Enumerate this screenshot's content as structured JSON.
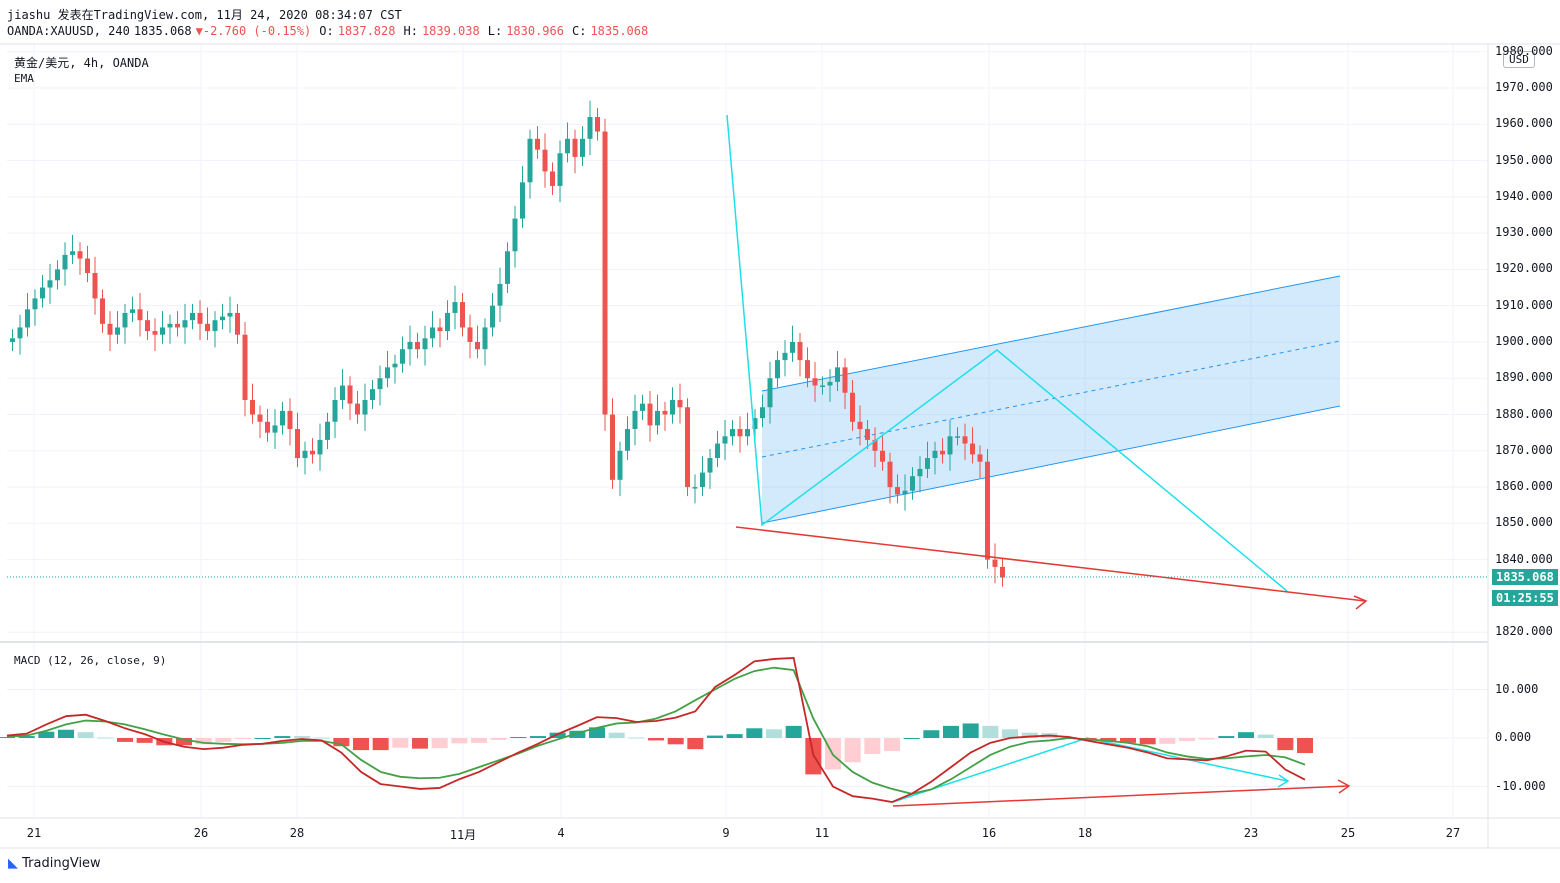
{
  "header": {
    "line1": "jiashu 发表在TradingView.com, 11月 24, 2020 08:34:07 CST",
    "symbol": "OANDA:XAUUSD, 240",
    "last": "1835.068",
    "change": "-2.760 (-0.15%)",
    "open_label": "O:",
    "open": "1837.828",
    "high_label": "H:",
    "high": "1839.038",
    "low_label": "L:",
    "low": "1830.966",
    "close_label": "C:",
    "close": "1835.068"
  },
  "legend": {
    "title": "黄金/美元, 4h, OANDA",
    "indicator": "EMA",
    "macd": "MACD (12, 26, close, 9)"
  },
  "currency": "USD",
  "price_badge": "1835.068",
  "countdown_badge": "01:25:55",
  "brand": "TradingView",
  "colors": {
    "up": "#26a69a",
    "down": "#ef5350",
    "channel": "#2196f3",
    "zigzag": "#1fe0e8",
    "trend": "#e53935",
    "macd": "#c62828",
    "signal": "#43a047"
  },
  "chart_data": [
    {
      "type": "candlestick",
      "title": "黄金/美元, 4h, OANDA",
      "ylim": [
        1818,
        1990
      ],
      "yticks": [
        "1980.000",
        "1970.000",
        "1960.000",
        "1950.000",
        "1940.000",
        "1930.000",
        "1920.000",
        "1910.000",
        "1900.000",
        "1890.000",
        "1880.000",
        "1870.000",
        "1860.000",
        "1850.000",
        "1840.000",
        "1820.000"
      ],
      "xticks": [
        "21",
        "26",
        "28",
        "11月",
        "4",
        "9",
        "11",
        "16",
        "18",
        "23",
        "25",
        "27"
      ],
      "ohlc_closes_approx": [
        1901,
        1904,
        1909,
        1912,
        1915,
        1917,
        1920,
        1924,
        1925,
        1923,
        1919,
        1912,
        1905,
        1902,
        1904,
        1908,
        1909,
        1906,
        1903,
        1902,
        1904,
        1905,
        1904,
        1906,
        1908,
        1905,
        1903,
        1906,
        1907,
        1908,
        1902,
        1884,
        1880,
        1878,
        1875,
        1877,
        1881,
        1876,
        1868,
        1870,
        1869,
        1873,
        1878,
        1884,
        1888,
        1883,
        1880,
        1884,
        1887,
        1890,
        1893,
        1894,
        1898,
        1900,
        1898,
        1901,
        1904,
        1903,
        1908,
        1911,
        1904,
        1900,
        1898,
        1904,
        1910,
        1916,
        1925,
        1934,
        1944,
        1956,
        1953,
        1947,
        1943,
        1952,
        1956,
        1951,
        1956,
        1962,
        1958,
        1880,
        1862,
        1870,
        1876,
        1881,
        1883,
        1877,
        1881,
        1880,
        1884,
        1882,
        1860,
        1860,
        1864,
        1868,
        1872,
        1874,
        1876,
        1874,
        1876,
        1879,
        1882,
        1890,
        1895,
        1897,
        1900,
        1895,
        1890,
        1888,
        1888,
        1889,
        1893,
        1886,
        1878,
        1876,
        1873,
        1870,
        1867,
        1860,
        1858,
        1859,
        1863,
        1865,
        1868,
        1870,
        1869,
        1874,
        1874,
        1872,
        1869,
        1867,
        1840,
        1838,
        1835.068
      ],
      "annotations": [
        "parallel channel",
        "zigzag",
        "support trend line"
      ]
    },
    {
      "type": "line",
      "title": "MACD (12, 26, close, 9)",
      "ylim": [
        -17,
        17
      ],
      "yticks": [
        "10.000",
        "0.000",
        "-10.000"
      ],
      "series": [
        {
          "name": "MACD",
          "values": [
            0.5,
            0.9,
            2.8,
            4.5,
            4.8,
            3.5,
            2.0,
            0.8,
            -0.8,
            -1.8,
            -2.3,
            -2.0,
            -1.4,
            -1.2,
            -0.6,
            -0.2,
            -0.5,
            -3.0,
            -7.0,
            -9.5,
            -10.0,
            -10.5,
            -10.3,
            -8.5,
            -7.0,
            -5.0,
            -3.0,
            -1.2,
            0.8,
            2.5,
            4.3,
            4.1,
            3.3,
            3.5,
            4.2,
            5.5,
            10.5,
            13.0,
            15.8,
            16.3,
            16.5,
            -3.5,
            -10.0,
            -12.0,
            -12.5,
            -13.2,
            -11.5,
            -9.0,
            -6.0,
            -3.0,
            -1.0,
            0.0,
            0.3,
            0.5,
            0.2,
            -0.6,
            -1.3,
            -2.0,
            -3.0,
            -4.2,
            -4.4,
            -4.6,
            -3.8,
            -2.6,
            -2.8,
            -6.5,
            -8.6
          ]
        },
        {
          "name": "Signal",
          "values": [
            0.3,
            0.5,
            1.5,
            2.8,
            3.6,
            3.4,
            2.8,
            1.8,
            0.7,
            -0.3,
            -1.0,
            -1.2,
            -1.3,
            -1.2,
            -1.0,
            -0.6,
            -0.6,
            -1.3,
            -4.5,
            -7.0,
            -8.0,
            -8.3,
            -8.2,
            -7.4,
            -6.0,
            -4.6,
            -3.2,
            -1.6,
            -0.3,
            1.0,
            2.1,
            3.0,
            3.2,
            4.0,
            5.5,
            7.8,
            10.0,
            12.2,
            13.8,
            14.5,
            14.0,
            4.0,
            -3.5,
            -7.0,
            -9.2,
            -10.5,
            -11.5,
            -10.6,
            -8.5,
            -6.0,
            -3.5,
            -1.8,
            -0.8,
            -0.5,
            0.0,
            -0.3,
            -0.6,
            -1.0,
            -1.7,
            -3.0,
            -3.8,
            -4.3,
            -4.2,
            -3.8,
            -3.5,
            -4.0,
            -5.5
          ]
        }
      ],
      "annotations": [
        "bullish divergence trend line",
        "zigzag"
      ]
    }
  ]
}
